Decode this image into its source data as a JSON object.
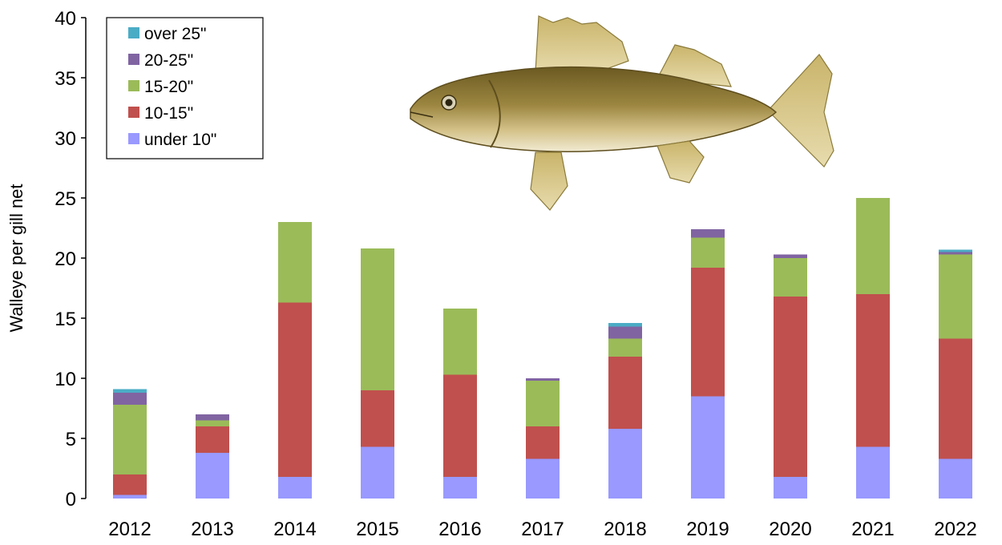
{
  "chart_data": {
    "type": "bar",
    "stacked": true,
    "title": "",
    "xlabel": "",
    "ylabel": "Walleye per gill net",
    "ylim": [
      0,
      40
    ],
    "yticks": [
      0,
      5,
      10,
      15,
      20,
      25,
      30,
      35,
      40
    ],
    "grid": false,
    "legend_position": "top-left",
    "categories": [
      "2012",
      "2013",
      "2014",
      "2015",
      "2016",
      "2017",
      "2018",
      "2019",
      "2020",
      "2021",
      "2022"
    ],
    "series": [
      {
        "name": "under 10\"",
        "color": "#9999ff",
        "values": [
          0.3,
          3.8,
          1.8,
          4.3,
          1.8,
          3.3,
          5.8,
          8.5,
          1.8,
          4.3,
          3.3
        ]
      },
      {
        "name": "10-15\"",
        "color": "#c0504d",
        "values": [
          1.7,
          2.2,
          14.5,
          4.7,
          8.5,
          2.7,
          6.0,
          10.7,
          15.0,
          12.7,
          10.0
        ]
      },
      {
        "name": "15-20\"",
        "color": "#9bbb59",
        "values": [
          5.8,
          0.5,
          6.7,
          11.8,
          5.5,
          3.8,
          1.5,
          2.5,
          3.2,
          8.0,
          7.0
        ]
      },
      {
        "name": "20-25\"",
        "color": "#8064a2",
        "values": [
          1.0,
          0.5,
          0.0,
          0.0,
          0.0,
          0.2,
          1.0,
          0.7,
          0.3,
          0.0,
          0.2
        ]
      },
      {
        "name": "over 25\"",
        "color": "#4bacc6",
        "values": [
          0.3,
          0.0,
          0.0,
          0.0,
          0.0,
          0.0,
          0.3,
          0.0,
          0.0,
          0.0,
          0.2
        ]
      }
    ],
    "legend_order": [
      "over 25\"",
      "20-25\"",
      "15-20\"",
      "10-15\"",
      "under 10\""
    ],
    "illustration": "walleye-fish"
  }
}
